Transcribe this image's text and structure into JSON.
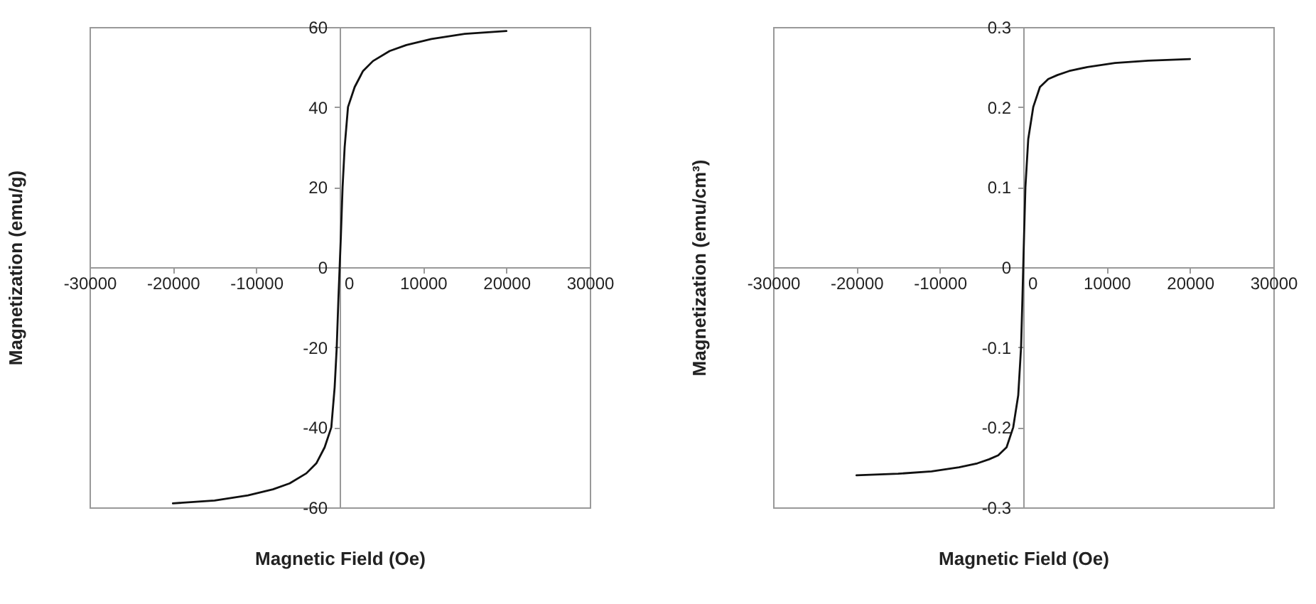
{
  "chart_data": [
    {
      "type": "line",
      "xlabel": "Magnetic Field (Oe)",
      "ylabel": "Magnetization (emu/g)",
      "xlim": [
        -30000,
        30000
      ],
      "ylim": [
        -60,
        60
      ],
      "xticks": [
        -30000,
        -20000,
        -10000,
        0,
        10000,
        20000,
        30000
      ],
      "yticks": [
        -60,
        -40,
        -20,
        0,
        20,
        40,
        60
      ],
      "x": [
        -20000,
        -15000,
        -11000,
        -8000,
        -6000,
        -4000,
        -2800,
        -1800,
        -1000,
        -600,
        -350,
        -150,
        0,
        150,
        350,
        600,
        1000,
        1800,
        2800,
        4000,
        6000,
        8000,
        11000,
        15000,
        20000
      ],
      "series": [
        {
          "color": "#111111",
          "values": [
            -59,
            -58.3,
            -57,
            -55.5,
            -54,
            -51.5,
            -49,
            -45,
            -40,
            -30,
            -20,
            -8,
            0,
            8,
            20,
            30,
            40,
            45,
            49,
            51.5,
            54,
            55.5,
            57,
            58.3,
            59
          ]
        }
      ]
    },
    {
      "type": "line",
      "xlabel": "Magnetic Field (Oe)",
      "ylabel": "Magnetization (emu/cm³)",
      "xlim": [
        -30000,
        30000
      ],
      "ylim": [
        -0.3,
        0.3
      ],
      "xticks": [
        -30000,
        -20000,
        -10000,
        0,
        10000,
        20000,
        30000
      ],
      "yticks": [
        -0.3,
        -0.2,
        -0.1,
        0,
        0.1,
        0.2,
        0.3
      ],
      "x": [
        -20000,
        -15000,
        -11000,
        -7700,
        -5500,
        -4100,
        -3000,
        -2000,
        -1200,
        -600,
        -260,
        -100,
        0,
        100,
        260,
        600,
        1200,
        2000,
        3000,
        4100,
        5500,
        7700,
        11000,
        15000,
        20000
      ],
      "series": [
        {
          "color": "#111111",
          "values": [
            -0.26,
            -0.258,
            -0.255,
            -0.25,
            -0.245,
            -0.24,
            -0.235,
            -0.225,
            -0.2,
            -0.16,
            -0.1,
            -0.04,
            0,
            0.04,
            0.1,
            0.16,
            0.2,
            0.225,
            0.235,
            0.24,
            0.245,
            0.25,
            0.255,
            0.258,
            0.26
          ]
        }
      ]
    }
  ]
}
